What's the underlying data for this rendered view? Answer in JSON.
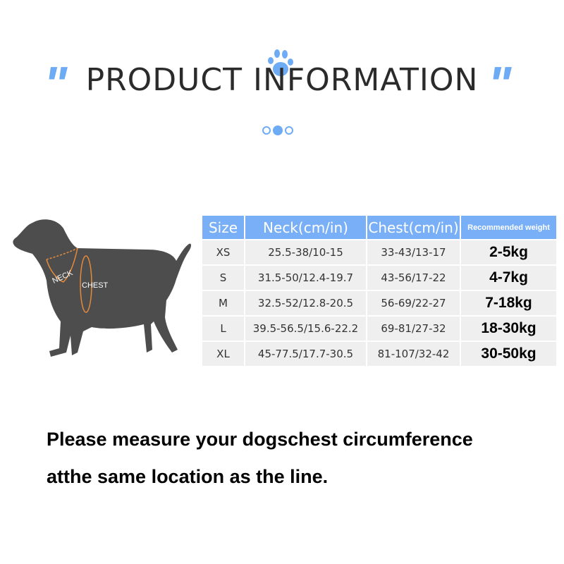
{
  "header": {
    "title": "PRODUCT INFORMATION",
    "quote_left": "\"",
    "quote_right": "\"",
    "accent": "#6eabf5",
    "icon": "paw-icon"
  },
  "illustration": {
    "neck_label": "NECK",
    "chest_label": "CHEST"
  },
  "table": {
    "headers": [
      "Size",
      "Neck(cm/in)",
      "Chest(cm/in)",
      "Recommended weight"
    ],
    "rows": [
      [
        "XS",
        "25.5-38/10-15",
        "33-43/13-17",
        "2-5kg"
      ],
      [
        "S",
        "31.5-50/12.4-19.7",
        "43-56/17-22",
        "4-7kg"
      ],
      [
        "M",
        "32.5-52/12.8-20.5",
        "56-69/22-27",
        "7-18kg"
      ],
      [
        "L",
        "39.5-56.5/15.6-22.2",
        "69-81/27-32",
        "18-30kg"
      ],
      [
        "XL",
        "45-77.5/17.7-30.5",
        "81-107/32-42",
        "30-50kg"
      ]
    ]
  },
  "note": {
    "line1": "Please measure your dogschest circumference",
    "line2": "atthe same location as the line."
  }
}
